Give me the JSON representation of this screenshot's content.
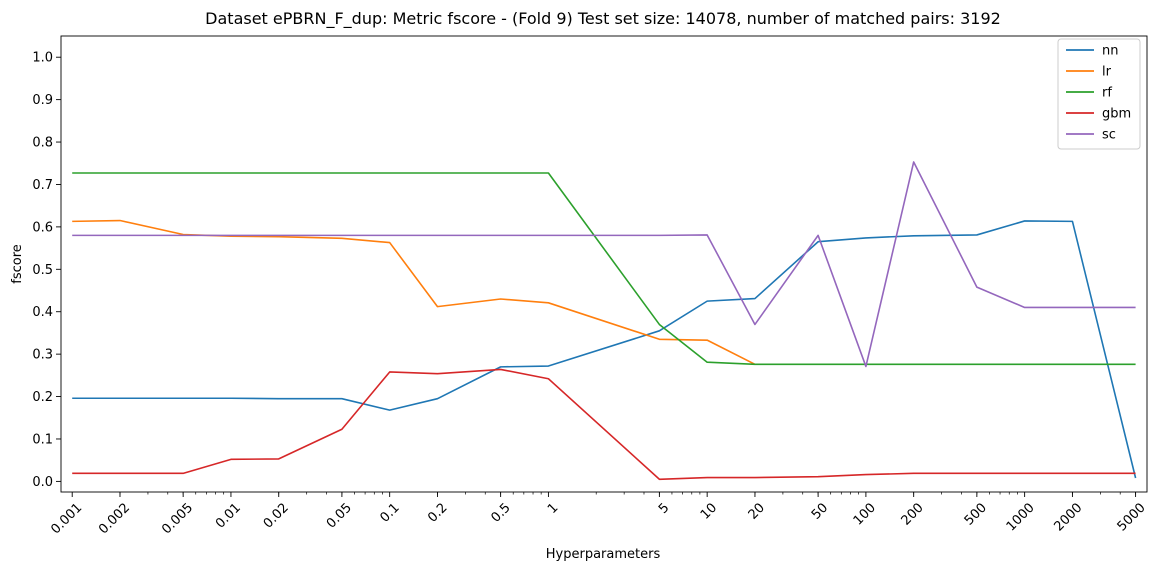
{
  "chart_data": {
    "type": "line",
    "title": "Dataset ePBRN_F_dup: Metric fscore - (Fold 9) Test set size: 14078, number of matched pairs: 3192",
    "xlabel": "Hyperparameters",
    "ylabel": "fscore",
    "x_scale": "log",
    "x_ticks": [
      "0.001",
      "0.002",
      "0.005",
      "0.01",
      "0.02",
      "0.05",
      "0.1",
      "0.2",
      "0.5",
      "1",
      "5",
      "10",
      "20",
      "50",
      "100",
      "200",
      "500",
      "1000",
      "2000",
      "5000"
    ],
    "y_ticks": [
      "0.0",
      "0.1",
      "0.2",
      "0.3",
      "0.4",
      "0.5",
      "0.6",
      "0.7",
      "0.8",
      "0.9",
      "1.0"
    ],
    "ylim": [
      -0.025,
      1.05
    ],
    "grid": false,
    "legend_position": "top-right",
    "series": [
      {
        "name": "nn",
        "color": "#1f77b4",
        "points": [
          [
            0.001,
            0.196
          ],
          [
            0.002,
            0.196
          ],
          [
            0.005,
            0.196
          ],
          [
            0.01,
            0.196
          ],
          [
            0.02,
            0.195
          ],
          [
            0.05,
            0.195
          ],
          [
            0.1,
            0.168
          ],
          [
            0.2,
            0.195
          ],
          [
            0.5,
            0.27
          ],
          [
            1,
            0.272
          ],
          [
            5,
            0.355
          ],
          [
            10,
            0.425
          ],
          [
            20,
            0.431
          ],
          [
            50,
            0.565
          ],
          [
            100,
            0.574
          ],
          [
            200,
            0.579
          ],
          [
            500,
            0.581
          ],
          [
            1000,
            0.614
          ],
          [
            2000,
            0.613
          ],
          [
            5000,
            0.008
          ]
        ]
      },
      {
        "name": "lr",
        "color": "#ff7f0e",
        "points": [
          [
            0.001,
            0.613
          ],
          [
            0.002,
            0.615
          ],
          [
            0.005,
            0.582
          ],
          [
            0.01,
            0.578
          ],
          [
            0.02,
            0.577
          ],
          [
            0.05,
            0.573
          ],
          [
            0.1,
            0.563
          ],
          [
            0.2,
            0.412
          ],
          [
            0.5,
            0.43
          ],
          [
            1,
            0.421
          ],
          [
            5,
            0.335
          ],
          [
            10,
            0.333
          ],
          [
            20,
            0.276
          ]
        ]
      },
      {
        "name": "rf",
        "color": "#2ca02c",
        "points": [
          [
            0.001,
            0.727
          ],
          [
            0.002,
            0.727
          ],
          [
            0.005,
            0.727
          ],
          [
            0.01,
            0.727
          ],
          [
            0.02,
            0.727
          ],
          [
            0.05,
            0.727
          ],
          [
            0.1,
            0.727
          ],
          [
            0.2,
            0.727
          ],
          [
            0.5,
            0.727
          ],
          [
            1,
            0.727
          ],
          [
            5,
            0.37
          ],
          [
            10,
            0.281
          ],
          [
            20,
            0.276
          ],
          [
            50,
            0.276
          ],
          [
            100,
            0.276
          ],
          [
            200,
            0.276
          ],
          [
            500,
            0.276
          ],
          [
            1000,
            0.276
          ],
          [
            2000,
            0.276
          ],
          [
            5000,
            0.276
          ]
        ]
      },
      {
        "name": "gbm",
        "color": "#d62728",
        "points": [
          [
            0.001,
            0.019
          ],
          [
            0.002,
            0.019
          ],
          [
            0.005,
            0.019
          ],
          [
            0.01,
            0.052
          ],
          [
            0.02,
            0.053
          ],
          [
            0.05,
            0.123
          ],
          [
            0.1,
            0.258
          ],
          [
            0.2,
            0.254
          ],
          [
            0.5,
            0.264
          ],
          [
            1,
            0.242
          ],
          [
            5,
            0.005
          ],
          [
            10,
            0.009
          ],
          [
            20,
            0.009
          ],
          [
            50,
            0.011
          ],
          [
            100,
            0.016
          ],
          [
            200,
            0.019
          ],
          [
            500,
            0.019
          ],
          [
            1000,
            0.019
          ],
          [
            2000,
            0.019
          ],
          [
            5000,
            0.019
          ]
        ]
      },
      {
        "name": "sc",
        "color": "#9467bd",
        "points": [
          [
            0.001,
            0.58
          ],
          [
            0.002,
            0.58
          ],
          [
            0.005,
            0.58
          ],
          [
            0.01,
            0.58
          ],
          [
            0.02,
            0.58
          ],
          [
            0.05,
            0.58
          ],
          [
            0.1,
            0.58
          ],
          [
            0.2,
            0.58
          ],
          [
            0.5,
            0.58
          ],
          [
            1,
            0.58
          ],
          [
            5,
            0.58
          ],
          [
            10,
            0.581
          ],
          [
            20,
            0.37
          ],
          [
            50,
            0.58
          ],
          [
            100,
            0.271
          ],
          [
            200,
            0.753
          ],
          [
            500,
            0.458
          ],
          [
            1000,
            0.41
          ],
          [
            2000,
            0.41
          ],
          [
            5000,
            0.41
          ]
        ]
      }
    ]
  }
}
